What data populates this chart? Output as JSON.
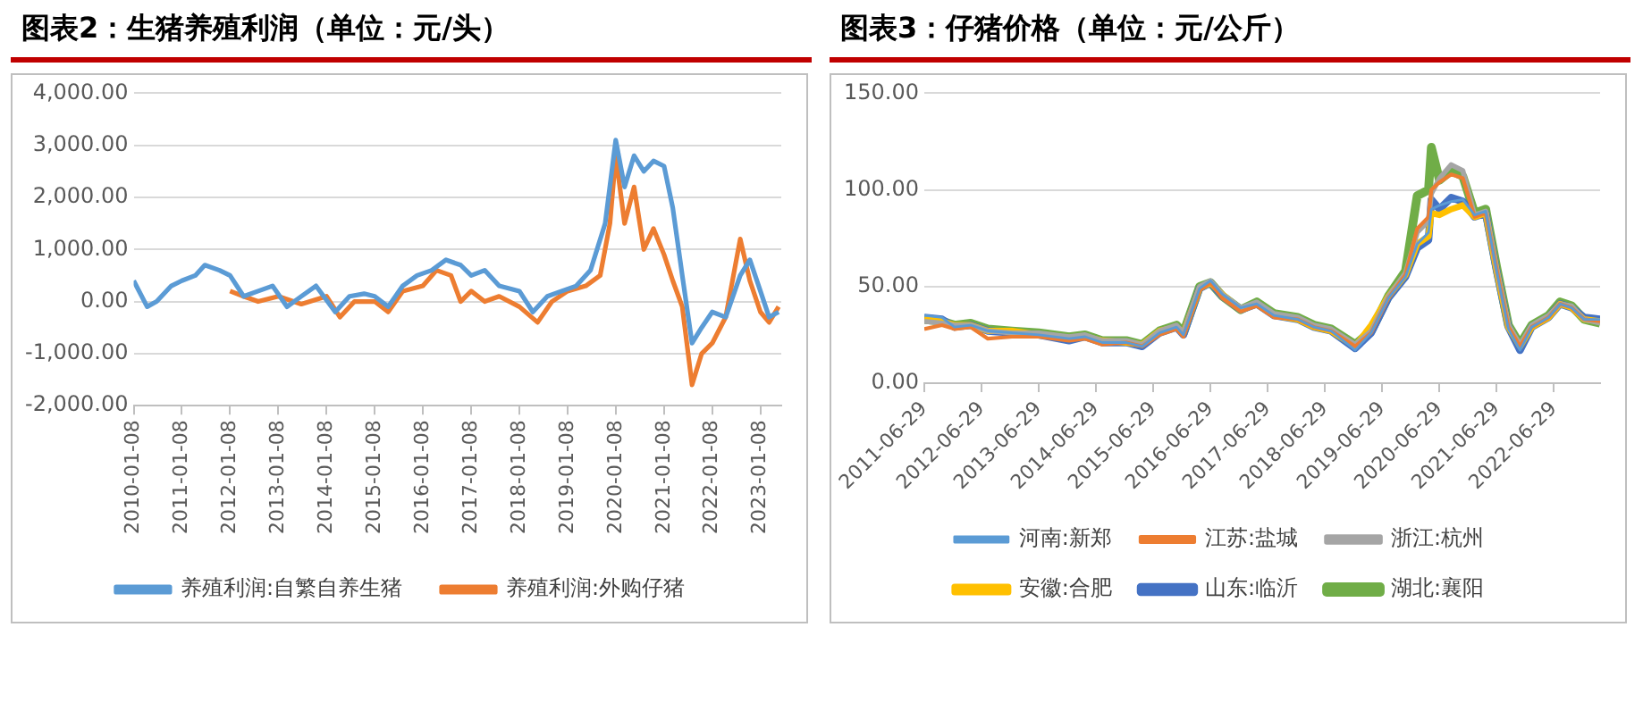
{
  "chart_data": [
    {
      "type": "line",
      "title": "图表2：生猪养殖利润（单位：元/头）",
      "grid": "y",
      "legend": "bottom",
      "marker": "none",
      "xlim": [
        "2010-01-08",
        "2023-06-15"
      ],
      "xticks": [
        "2010-01-08",
        "2011-01-08",
        "2012-01-08",
        "2013-01-08",
        "2014-01-08",
        "2015-01-08",
        "2016-01-08",
        "2017-01-08",
        "2018-01-08",
        "2019-01-08",
        "2020-01-08",
        "2021-01-08",
        "2022-01-08",
        "2023-01-08"
      ],
      "ylim": [
        -2000,
        4000
      ],
      "yticks": [
        {
          "value": -2000,
          "label": "-2,000.00"
        },
        {
          "value": -1000,
          "label": "-1,000.00"
        },
        {
          "value": 0,
          "label": "0.00"
        },
        {
          "value": 1000,
          "label": "1,000.00"
        },
        {
          "value": 2000,
          "label": "2,000.00"
        },
        {
          "value": 3000,
          "label": "3,000.00"
        },
        {
          "value": 4000,
          "label": "4,000.00"
        }
      ],
      "series": [
        {
          "name": "养殖利润:自繁自养生猪",
          "color": "#5b9bd5",
          "x": [
            "2010-01-08",
            "2010-04-20",
            "2010-07-01",
            "2010-10-20",
            "2011-01-08",
            "2011-04-20",
            "2011-07-01",
            "2011-10-20",
            "2012-01-08",
            "2012-04-20",
            "2012-08-08",
            "2012-11-25",
            "2013-03-15",
            "2013-07-01",
            "2013-10-20",
            "2014-03-15",
            "2014-07-01",
            "2014-10-20",
            "2015-01-08",
            "2015-04-20",
            "2015-08-08",
            "2015-11-25",
            "2016-03-15",
            "2016-07-01",
            "2016-10-20",
            "2017-01-08",
            "2017-04-20",
            "2017-08-08",
            "2018-01-08",
            "2018-04-20",
            "2018-08-08",
            "2018-11-25",
            "2019-03-15",
            "2019-07-01",
            "2019-10-20",
            "2020-01-08",
            "2020-03-15",
            "2020-05-26",
            "2020-08-08",
            "2020-10-20",
            "2021-01-08",
            "2021-03-15",
            "2021-05-26",
            "2021-08-08",
            "2021-10-20",
            "2022-01-08",
            "2022-04-20",
            "2022-08-08",
            "2022-10-20",
            "2023-01-08",
            "2023-03-15",
            "2023-05-26"
          ],
          "values": [
            400,
            -100,
            0,
            300,
            400,
            500,
            700,
            600,
            500,
            100,
            200,
            300,
            -100,
            100,
            300,
            -200,
            100,
            150,
            100,
            -100,
            300,
            500,
            600,
            800,
            700,
            500,
            600,
            300,
            200,
            -200,
            100,
            200,
            300,
            600,
            1500,
            3100,
            2200,
            2800,
            2500,
            2700,
            2600,
            1800,
            500,
            -800,
            -500,
            -200,
            -300,
            500,
            800,
            200,
            -300,
            -200
          ]
        },
        {
          "name": "养殖利润:外购仔猪",
          "color": "#ed7d31",
          "x": [
            "2012-01-08",
            "2012-04-20",
            "2012-08-08",
            "2013-01-08",
            "2013-07-01",
            "2014-01-08",
            "2014-04-20",
            "2014-08-08",
            "2015-01-08",
            "2015-04-20",
            "2015-08-08",
            "2016-01-08",
            "2016-04-20",
            "2016-08-08",
            "2016-10-20",
            "2017-01-08",
            "2017-04-20",
            "2017-08-08",
            "2018-01-08",
            "2018-05-26",
            "2018-09-12",
            "2019-01-08",
            "2019-05-26",
            "2019-09-12",
            "2019-11-25",
            "2020-01-08",
            "2020-03-15",
            "2020-05-26",
            "2020-08-08",
            "2020-10-20",
            "2021-01-08",
            "2021-03-15",
            "2021-05-26",
            "2021-08-08",
            "2021-10-20",
            "2022-01-08",
            "2022-04-20",
            "2022-08-08",
            "2022-10-20",
            "2023-01-08",
            "2023-03-15",
            "2023-05-26"
          ],
          "values": [
            200,
            100,
            0,
            100,
            -50,
            100,
            -300,
            0,
            0,
            -200,
            200,
            300,
            600,
            500,
            0,
            200,
            0,
            100,
            -100,
            -400,
            0,
            200,
            300,
            500,
            1500,
            2800,
            1500,
            2200,
            1000,
            1400,
            900,
            400,
            -100,
            -1600,
            -1000,
            -800,
            -300,
            1200,
            400,
            -200,
            -400,
            -100
          ]
        }
      ]
    },
    {
      "type": "line",
      "title": "图表3：仔猪价格（单位：元/公斤）",
      "grid": "y",
      "legend": "bottom",
      "marker": "none",
      "x": [
        "2011-06-29",
        "2011-10-20",
        "2012-01-08",
        "2012-04-20",
        "2012-08-08",
        "2013-01-08",
        "2013-06-29",
        "2014-01-08",
        "2014-04-20",
        "2014-08-08",
        "2015-01-08",
        "2015-04-20",
        "2015-08-08",
        "2015-11-25",
        "2016-01-08",
        "2016-04-20",
        "2016-06-29",
        "2016-09-12",
        "2017-01-08",
        "2017-04-20",
        "2017-08-08",
        "2018-01-08",
        "2018-04-20",
        "2018-08-08",
        "2019-01-08",
        "2019-04-20",
        "2019-08-08",
        "2019-11-25",
        "2020-02-08",
        "2020-04-20",
        "2020-05-08",
        "2020-06-29",
        "2020-09-12",
        "2020-11-25",
        "2021-02-08",
        "2021-04-20",
        "2021-06-29",
        "2021-09-12",
        "2021-11-25",
        "2022-02-08",
        "2022-05-26",
        "2022-08-08",
        "2022-10-20",
        "2023-01-08",
        "2023-04-20"
      ],
      "xlim": [
        "2011-06-29",
        "2023-04-20"
      ],
      "xticks": [
        "2011-06-29",
        "2012-06-29",
        "2013-06-29",
        "2014-06-29",
        "2015-06-29",
        "2016-06-29",
        "2017-06-29",
        "2018-06-29",
        "2019-06-29",
        "2020-06-29",
        "2021-06-29",
        "2022-06-29"
      ],
      "ylim": [
        0,
        150
      ],
      "yticks": [
        {
          "value": 0,
          "label": "0.00"
        },
        {
          "value": 50,
          "label": "50.00"
        },
        {
          "value": 100,
          "label": "100.00"
        },
        {
          "value": 150,
          "label": "150.00"
        }
      ],
      "series": [
        {
          "name": "河南:新郑",
          "color": "#5b9bd5",
          "values": [
            35,
            34,
            29,
            30,
            27,
            26,
            25,
            23,
            24,
            21,
            21,
            19,
            26,
            29,
            25,
            49,
            53,
            46,
            39,
            41,
            35,
            33,
            29,
            27,
            17,
            26,
            44,
            55,
            72,
            78,
            90,
            92,
            94,
            95,
            87,
            89,
            58,
            28,
            17,
            29,
            34,
            41,
            39,
            33,
            33
          ]
        },
        {
          "name": "江苏:盐城",
          "color": "#ed7d31",
          "values": [
            28,
            30,
            28,
            29,
            23,
            24,
            24,
            22,
            23,
            20,
            21,
            19,
            25,
            28,
            24,
            48,
            52,
            44,
            37,
            40,
            34,
            33,
            29,
            27,
            19,
            26,
            44,
            56,
            80,
            86,
            100,
            104,
            108,
            106,
            86,
            88,
            59,
            29,
            19,
            29,
            34,
            41,
            39,
            33,
            32
          ]
        },
        {
          "name": "浙江:杭州",
          "color": "#a5a5a5",
          "values": [
            32,
            31,
            30,
            30,
            27,
            26,
            26,
            24,
            25,
            22,
            22,
            20,
            27,
            30,
            26,
            50,
            53,
            46,
            39,
            42,
            36,
            34,
            30,
            28,
            20,
            27,
            45,
            57,
            78,
            84,
            98,
            106,
            113,
            110,
            87,
            89,
            59,
            30,
            20,
            30,
            35,
            41,
            40,
            33,
            31
          ]
        },
        {
          "name": "安徽:合肥",
          "color": "#ffc000",
          "values": [
            33,
            32,
            30,
            30,
            27,
            27,
            25,
            23,
            24,
            22,
            21,
            20,
            27,
            29,
            26,
            49,
            52,
            46,
            38,
            41,
            35,
            33,
            29,
            27,
            19,
            30,
            45,
            56,
            72,
            76,
            88,
            87,
            90,
            92,
            86,
            88,
            58,
            29,
            19,
            29,
            34,
            41,
            39,
            33,
            32
          ]
        },
        {
          "name": "山东:临沂",
          "color": "#4472c4",
          "values": [
            34,
            33,
            29,
            30,
            27,
            26,
            25,
            22,
            24,
            21,
            21,
            19,
            26,
            29,
            25,
            49,
            52,
            45,
            38,
            41,
            35,
            33,
            29,
            27,
            18,
            26,
            44,
            55,
            70,
            74,
            95,
            90,
            96,
            94,
            86,
            88,
            58,
            29,
            17,
            29,
            34,
            41,
            39,
            34,
            33
          ]
        },
        {
          "name": "湖北:襄阳",
          "color": "#70ad47",
          "values": [
            33,
            32,
            30,
            31,
            28,
            27,
            26,
            24,
            25,
            22,
            22,
            20,
            27,
            30,
            26,
            50,
            52,
            45,
            38,
            42,
            36,
            34,
            30,
            28,
            20,
            27,
            45,
            58,
            97,
            100,
            122,
            105,
            110,
            107,
            88,
            90,
            60,
            30,
            20,
            30,
            35,
            42,
            40,
            33,
            31
          ]
        }
      ]
    }
  ]
}
